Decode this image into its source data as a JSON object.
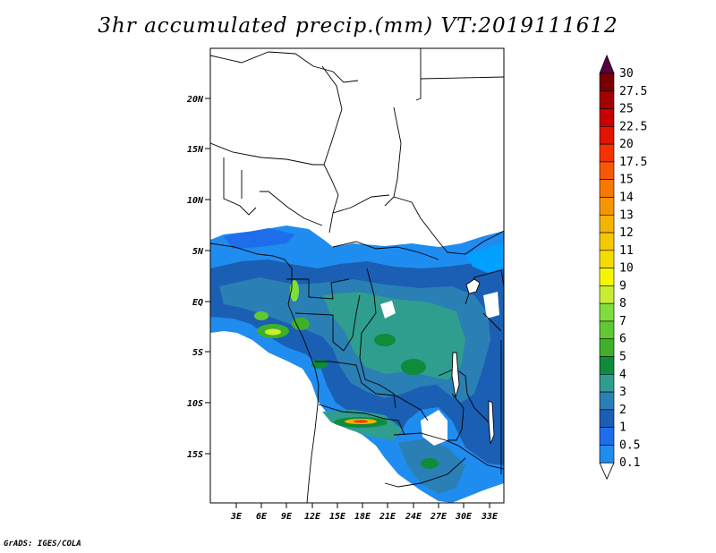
{
  "title": "3hr accumulated precip.(mm) VT:2019111612",
  "footer": "GrADS: IGES/COLA",
  "map": {
    "lat_labels": [
      "20N",
      "15N",
      "10N",
      "5N",
      "EQ",
      "5S",
      "10S",
      "15S"
    ],
    "lon_labels": [
      "3E",
      "6E",
      "9E",
      "12E",
      "15E",
      "18E",
      "21E",
      "24E",
      "27E",
      "30E",
      "33E"
    ]
  },
  "colorbar": {
    "labels": [
      "0.1",
      "0.5",
      "1",
      "2",
      "3",
      "4",
      "5",
      "6",
      "7",
      "8",
      "9",
      "10",
      "11",
      "12",
      "13",
      "14",
      "15",
      "17.5",
      "20",
      "22.5",
      "25",
      "27.5",
      "30"
    ],
    "colors": [
      "#00a0ff",
      "#1f8cf0",
      "#1e6eeb",
      "#1a5fb4",
      "#2a7fb5",
      "#2f9e8f",
      "#0e8c3a",
      "#3fb02a",
      "#5fc832",
      "#7fde3c",
      "#c8ee32",
      "#f5f500",
      "#f5dc00",
      "#f5c800",
      "#f5b400",
      "#f59600",
      "#f57800",
      "#f55a00",
      "#f53200",
      "#e11400",
      "#c80000",
      "#a50000",
      "#780000",
      "#5a0040"
    ]
  }
}
